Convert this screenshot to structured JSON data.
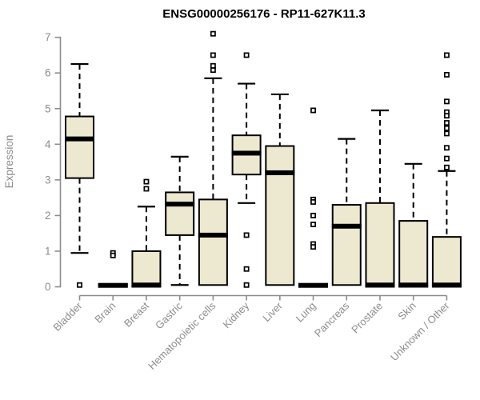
{
  "title": "ENSG00000256176 - RP11-627K11.3",
  "chart_data": {
    "type": "boxplot",
    "title": "ENSG00000256176 - RP11-627K11.3",
    "xlabel": "",
    "ylabel": "Expression",
    "ylim": [
      0,
      7
    ],
    "yticks": [
      0,
      1,
      2,
      3,
      4,
      5,
      6,
      7
    ],
    "grid": false,
    "legend": "none",
    "colors": {
      "box_fill": "#EDE8D0",
      "box_border": "#000000",
      "median": "#000000",
      "whisker": "#000000",
      "outlier_fill": "#ffffff",
      "axis": "#8C8C8C",
      "title": "#000000"
    },
    "categories": [
      "Bladder",
      "Brain",
      "Breast",
      "Gastric",
      "Hematopoietic cells",
      "Kidney",
      "Liver",
      "Lung",
      "Pancreas",
      "Prostate",
      "Skin",
      "Unknown / Other"
    ],
    "boxes": [
      {
        "category": "Bladder",
        "q1": 3.05,
        "median": 4.15,
        "q3": 4.78,
        "whisker_low": 0.95,
        "whisker_high": 6.25,
        "outliers": [
          0.05
        ]
      },
      {
        "category": "Brain",
        "q1": 0,
        "median": 0.04,
        "q3": 0.08,
        "whisker_low": 0,
        "whisker_high": 0.08,
        "outliers": [
          0.95,
          0.88
        ]
      },
      {
        "category": "Breast",
        "q1": 0,
        "median": 0.05,
        "q3": 1.0,
        "whisker_low": 0,
        "whisker_high": 2.25,
        "outliers": [
          2.95,
          2.75
        ]
      },
      {
        "category": "Gastric",
        "q1": 1.45,
        "median": 2.32,
        "q3": 2.65,
        "whisker_low": 0.05,
        "whisker_high": 3.65,
        "outliers": []
      },
      {
        "category": "Hematopoietic cells",
        "q1": 0.05,
        "median": 1.45,
        "q3": 2.45,
        "whisker_low": 0.05,
        "whisker_high": 5.85,
        "outliers": [
          7.1,
          6.5,
          6.2,
          6.08
        ]
      },
      {
        "category": "Kidney",
        "q1": 3.15,
        "median": 3.75,
        "q3": 4.25,
        "whisker_low": 2.35,
        "whisker_high": 5.7,
        "outliers": [
          6.5,
          1.45,
          0.5,
          0.05
        ]
      },
      {
        "category": "Liver",
        "q1": 0.05,
        "median": 3.2,
        "q3": 3.95,
        "whisker_low": 0.05,
        "whisker_high": 5.4,
        "outliers": []
      },
      {
        "category": "Lung",
        "q1": 0,
        "median": 0.04,
        "q3": 0.08,
        "whisker_low": 0,
        "whisker_high": 0.08,
        "outliers": [
          4.95,
          2.45,
          2.38,
          2.0,
          1.75,
          1.2,
          1.12
        ]
      },
      {
        "category": "Pancreas",
        "q1": 0.05,
        "median": 1.7,
        "q3": 2.3,
        "whisker_low": 0.05,
        "whisker_high": 4.15,
        "outliers": []
      },
      {
        "category": "Prostate",
        "q1": 0,
        "median": 0.05,
        "q3": 2.35,
        "whisker_low": 0,
        "whisker_high": 4.95,
        "outliers": []
      },
      {
        "category": "Skin",
        "q1": 0,
        "median": 0.05,
        "q3": 1.85,
        "whisker_low": 0,
        "whisker_high": 3.45,
        "outliers": []
      },
      {
        "category": "Unknown / Other",
        "q1": 0,
        "median": 0.05,
        "q3": 1.4,
        "whisker_low": 0,
        "whisker_high": 3.25,
        "outliers": [
          6.5,
          5.95,
          5.2,
          4.9,
          4.8,
          4.6,
          4.45,
          4.3,
          3.9,
          3.6,
          3.35
        ]
      }
    ]
  }
}
